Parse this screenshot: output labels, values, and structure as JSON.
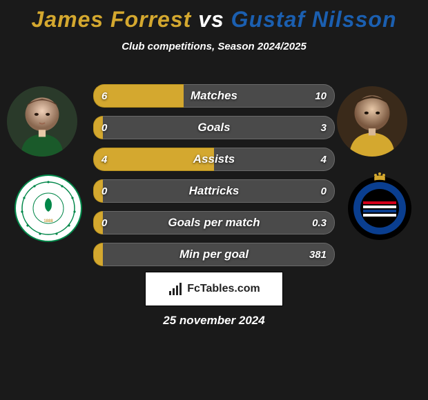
{
  "title": {
    "player1": "James Forrest",
    "vs": "vs",
    "player2": "Gustaf Nilsson",
    "player1_color": "#d4a82f",
    "player2_color": "#1b5fb0"
  },
  "subtitle": "Club competitions, Season 2024/2025",
  "colors": {
    "left_fill": "#d4a82f",
    "left_border": "#b8921f",
    "right_fill": "#4a4a4a",
    "right_border": "#6a6a6a",
    "background": "#1a1a1a"
  },
  "bars": [
    {
      "label": "Matches",
      "left_val": "6",
      "right_val": "10",
      "left_pct": 37.5
    },
    {
      "label": "Goals",
      "left_val": "0",
      "right_val": "3",
      "left_pct": 4
    },
    {
      "label": "Assists",
      "left_val": "4",
      "right_val": "4",
      "left_pct": 50
    },
    {
      "label": "Hattricks",
      "left_val": "0",
      "right_val": "0",
      "left_pct": 4
    },
    {
      "label": "Goals per match",
      "left_val": "0",
      "right_val": "0.3",
      "left_pct": 4
    },
    {
      "label": "Min per goal",
      "left_val": "",
      "right_val": "381",
      "left_pct": 4
    }
  ],
  "brand": "FcTables.com",
  "date": "25 november 2024",
  "club_left": {
    "name": "Celtic",
    "ring_color": "#ffffff",
    "inner_color": "#018749",
    "text_color": "#c9a34a"
  },
  "club_right": {
    "name": "Club Brugge",
    "outer_color": "#000000",
    "ring_color": "#0a3e8f",
    "stripe_color": "#ffffff"
  }
}
